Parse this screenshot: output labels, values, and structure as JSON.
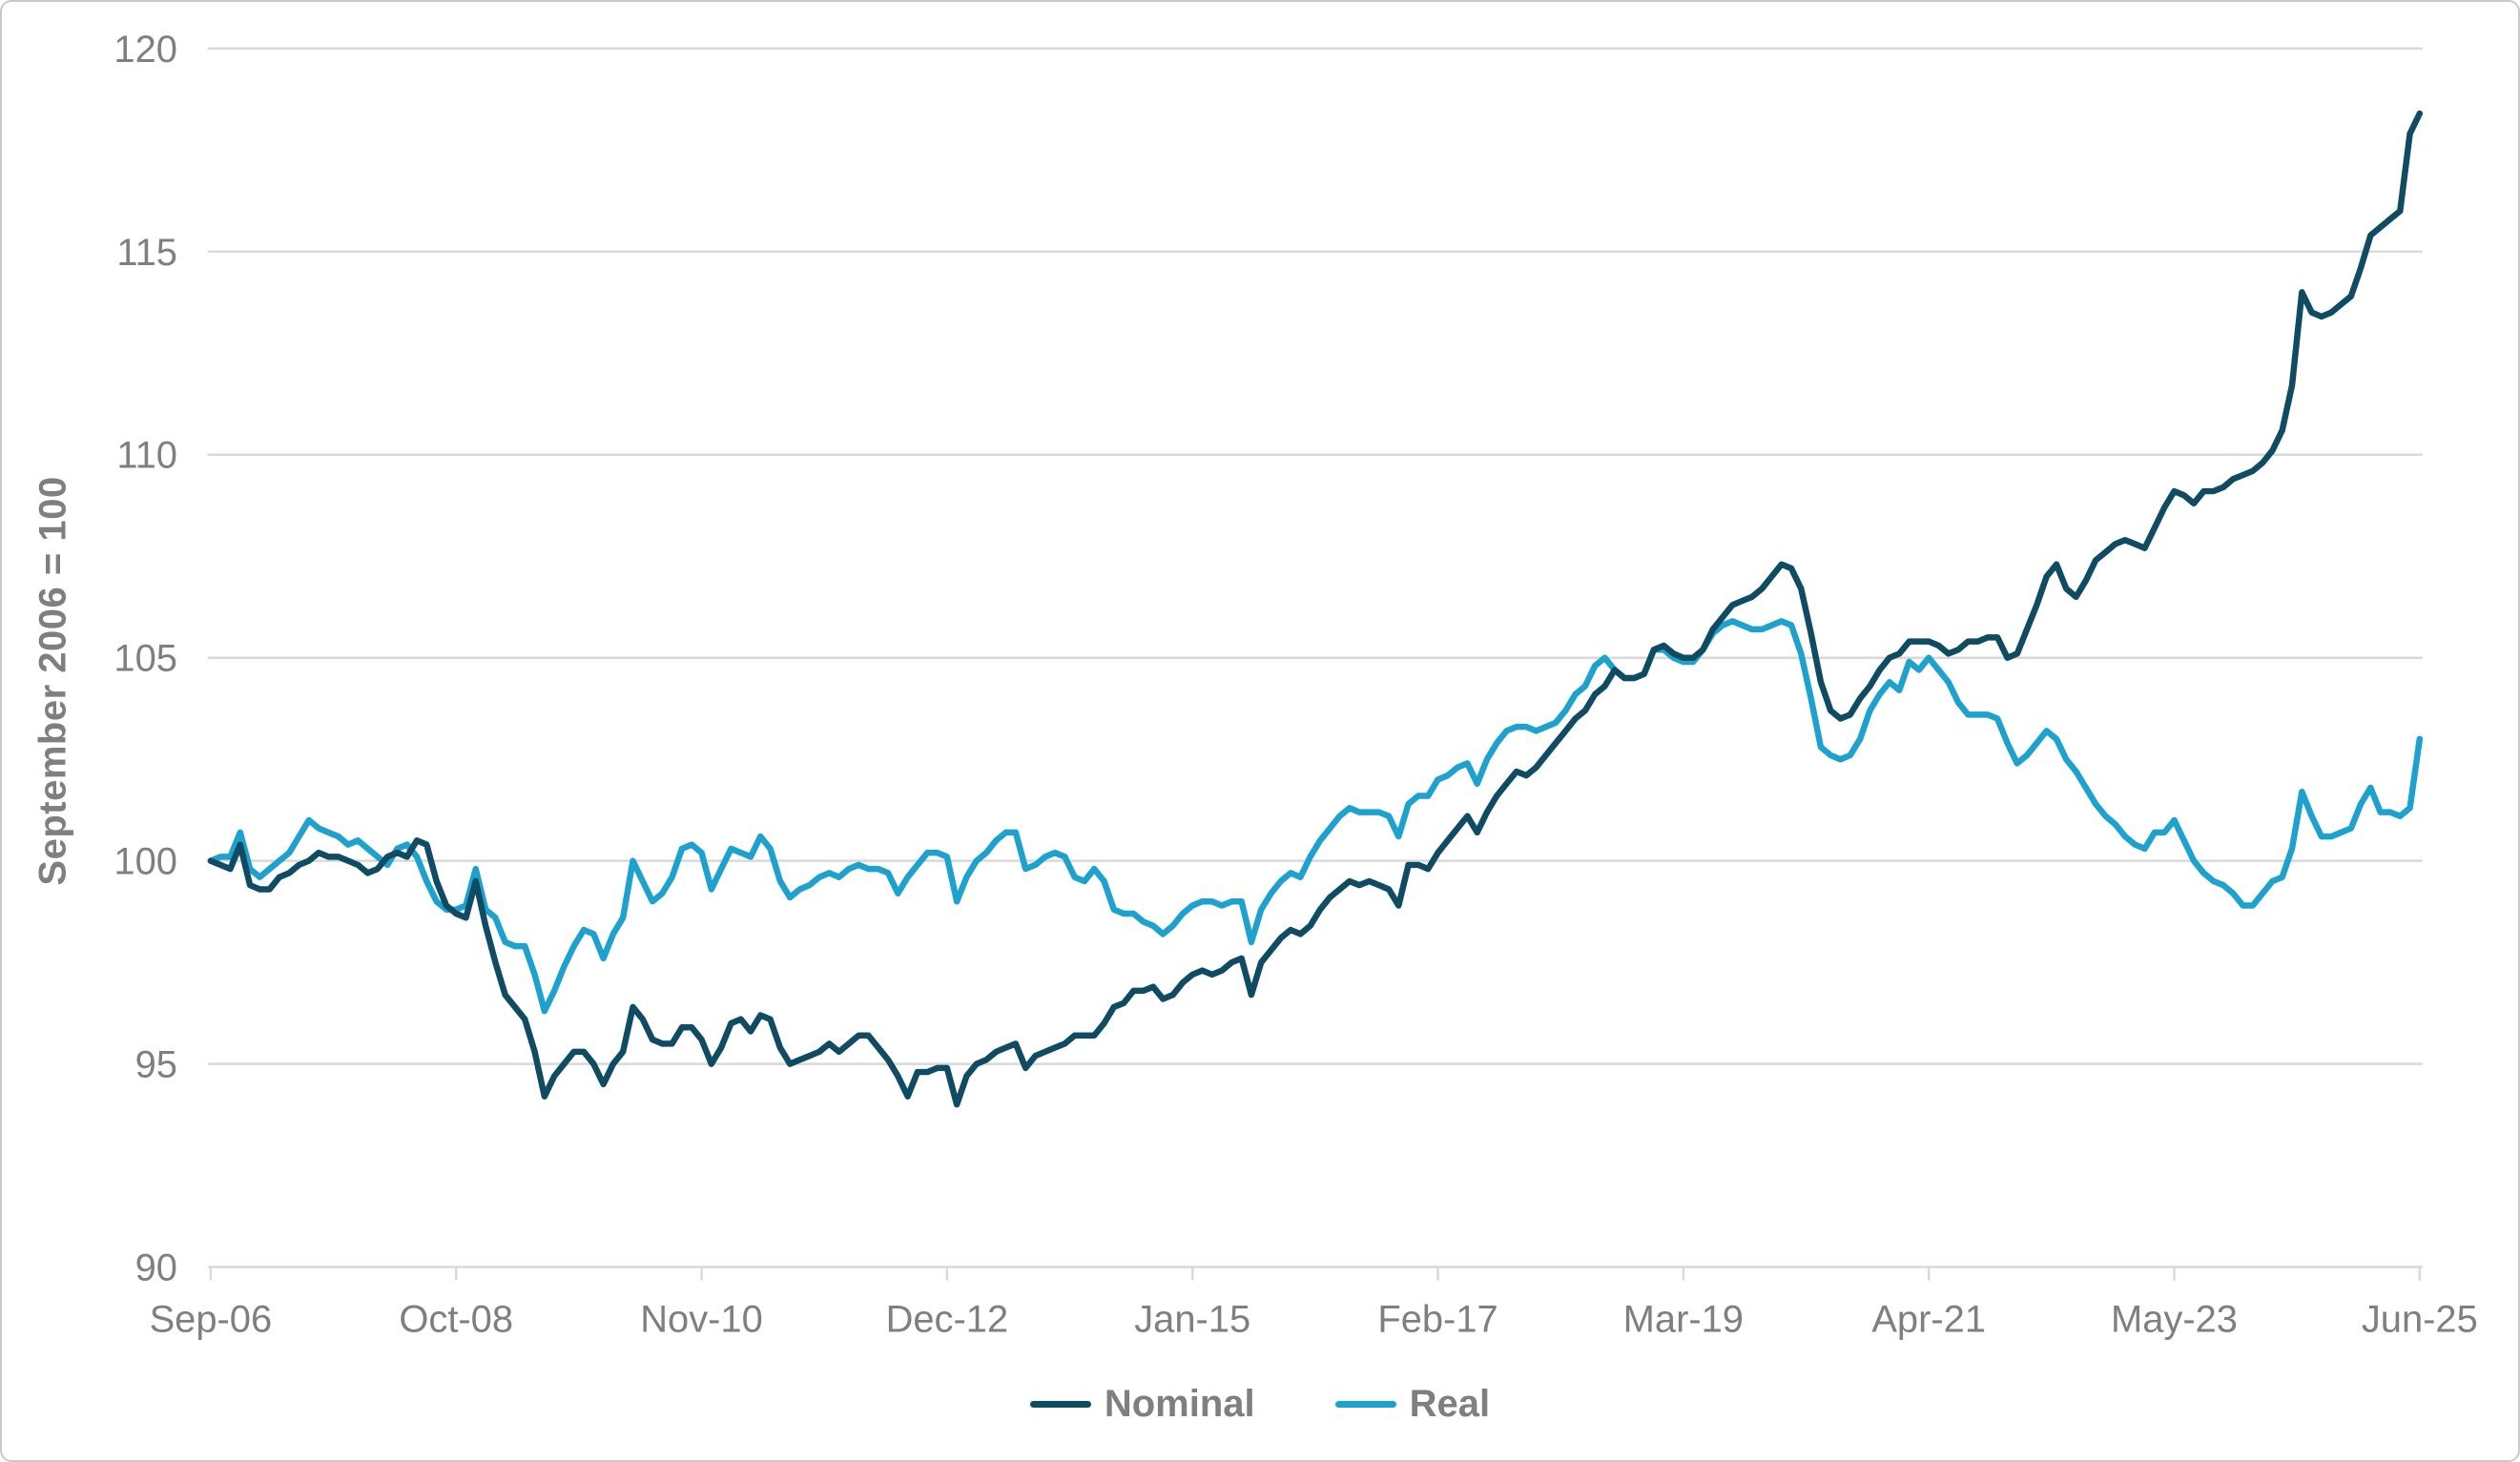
{
  "figure": {
    "y_axis_title": "September 2006 = 100"
  },
  "chart_data": {
    "type": "line",
    "title": "",
    "xlabel": "",
    "ylabel": "September 2006 = 100",
    "x_frequency": "monthly",
    "x_range_start": "Sep-2006",
    "x_range_end": "Jun-2025",
    "x_tick_labels": [
      "Sep-06",
      "Oct-08",
      "Nov-10",
      "Dec-12",
      "Jan-15",
      "Feb-17",
      "Mar-19",
      "Apr-21",
      "May-23",
      "Jun-25"
    ],
    "x_tick_month_indices": [
      0,
      25,
      50,
      75,
      100,
      125,
      150,
      175,
      200,
      225
    ],
    "ylim": [
      90,
      120
    ],
    "y_ticks": [
      90,
      95,
      100,
      105,
      110,
      115,
      120
    ],
    "grid": "horizontal",
    "legend_position": "bottom",
    "colors": {
      "nominal": "#0f4c64",
      "real": "#1da1ce",
      "gridline": "#d9d9d9",
      "axis_text": "#7f7f7f",
      "border": "#c9c9c9"
    },
    "series": [
      {
        "name": "Nominal",
        "color": "#0f4c64",
        "values": [
          100.0,
          99.9,
          99.8,
          100.4,
          99.4,
          99.3,
          99.3,
          99.6,
          99.7,
          99.9,
          100.0,
          100.2,
          100.1,
          100.1,
          100.0,
          99.9,
          99.7,
          99.8,
          100.1,
          100.2,
          100.1,
          100.5,
          100.4,
          99.5,
          98.9,
          98.7,
          98.6,
          99.5,
          98.4,
          97.5,
          96.7,
          96.4,
          96.1,
          95.3,
          94.2,
          94.7,
          95.0,
          95.3,
          95.3,
          95.0,
          94.5,
          95.0,
          95.3,
          96.4,
          96.1,
          95.6,
          95.5,
          95.5,
          95.9,
          95.9,
          95.6,
          95.0,
          95.4,
          96.0,
          96.1,
          95.8,
          96.2,
          96.1,
          95.4,
          95.0,
          95.1,
          95.2,
          95.3,
          95.5,
          95.3,
          95.5,
          95.7,
          95.7,
          95.4,
          95.1,
          94.7,
          94.2,
          94.8,
          94.8,
          94.9,
          94.9,
          94.0,
          94.7,
          95.0,
          95.1,
          95.3,
          95.4,
          95.5,
          94.9,
          95.2,
          95.3,
          95.4,
          95.5,
          95.7,
          95.7,
          95.7,
          96.0,
          96.4,
          96.5,
          96.8,
          96.8,
          96.9,
          96.6,
          96.7,
          97.0,
          97.2,
          97.3,
          97.2,
          97.3,
          97.5,
          97.6,
          96.7,
          97.5,
          97.8,
          98.1,
          98.3,
          98.2,
          98.4,
          98.8,
          99.1,
          99.3,
          99.5,
          99.4,
          99.5,
          99.4,
          99.3,
          98.9,
          99.9,
          99.9,
          99.8,
          100.2,
          100.5,
          100.8,
          101.1,
          100.7,
          101.2,
          101.6,
          101.9,
          102.2,
          102.1,
          102.3,
          102.6,
          102.9,
          103.2,
          103.5,
          103.7,
          104.1,
          104.3,
          104.7,
          104.5,
          104.5,
          104.6,
          105.2,
          105.3,
          105.1,
          105.0,
          105.0,
          105.2,
          105.7,
          106.0,
          106.3,
          106.4,
          106.5,
          106.7,
          107.0,
          107.3,
          107.2,
          106.7,
          105.6,
          104.4,
          103.7,
          103.5,
          103.6,
          104.0,
          104.3,
          104.7,
          105.0,
          105.1,
          105.4,
          105.4,
          105.4,
          105.3,
          105.1,
          105.2,
          105.4,
          105.4,
          105.5,
          105.5,
          105.0,
          105.1,
          105.7,
          106.3,
          107.0,
          107.3,
          106.7,
          106.5,
          106.9,
          107.4,
          107.6,
          107.8,
          107.9,
          107.8,
          107.7,
          108.2,
          108.7,
          109.1,
          109.0,
          108.8,
          109.1,
          109.1,
          109.2,
          109.4,
          109.5,
          109.6,
          109.8,
          110.1,
          110.6,
          111.7,
          114.0,
          113.5,
          113.4,
          113.5,
          113.7,
          113.9,
          114.6,
          115.4,
          115.6,
          115.8,
          116.0,
          117.9,
          118.4
        ]
      },
      {
        "name": "Real",
        "color": "#1da1ce",
        "values": [
          100.0,
          100.1,
          100.1,
          100.7,
          99.8,
          99.6,
          99.8,
          100.0,
          100.2,
          100.6,
          101.0,
          100.8,
          100.7,
          100.6,
          100.4,
          100.5,
          100.3,
          100.1,
          99.9,
          100.3,
          100.4,
          100.1,
          99.5,
          99.0,
          98.8,
          98.8,
          98.9,
          99.8,
          98.8,
          98.6,
          98.0,
          97.9,
          97.9,
          97.2,
          96.3,
          96.8,
          97.4,
          97.9,
          98.3,
          98.2,
          97.6,
          98.2,
          98.6,
          100.0,
          99.5,
          99.0,
          99.2,
          99.6,
          100.3,
          100.4,
          100.2,
          99.3,
          99.8,
          100.3,
          100.2,
          100.1,
          100.6,
          100.3,
          99.5,
          99.1,
          99.3,
          99.4,
          99.6,
          99.7,
          99.6,
          99.8,
          99.9,
          99.8,
          99.8,
          99.7,
          99.2,
          99.6,
          99.9,
          100.2,
          100.2,
          100.1,
          99.0,
          99.6,
          100.0,
          100.2,
          100.5,
          100.7,
          100.7,
          99.8,
          99.9,
          100.1,
          100.2,
          100.1,
          99.6,
          99.5,
          99.8,
          99.5,
          98.8,
          98.7,
          98.7,
          98.5,
          98.4,
          98.2,
          98.4,
          98.7,
          98.9,
          99.0,
          99.0,
          98.9,
          99.0,
          99.0,
          98.0,
          98.8,
          99.2,
          99.5,
          99.7,
          99.6,
          100.1,
          100.5,
          100.8,
          101.1,
          101.3,
          101.2,
          101.2,
          101.2,
          101.1,
          100.6,
          101.4,
          101.6,
          101.6,
          102.0,
          102.1,
          102.3,
          102.4,
          101.9,
          102.5,
          102.9,
          103.2,
          103.3,
          103.3,
          103.2,
          103.3,
          103.4,
          103.7,
          104.1,
          104.3,
          104.8,
          105.0,
          104.7,
          104.5,
          104.5,
          104.6,
          105.2,
          105.2,
          105.0,
          104.9,
          104.9,
          105.2,
          105.6,
          105.8,
          105.9,
          105.8,
          105.7,
          105.7,
          105.8,
          105.9,
          105.8,
          105.1,
          104.0,
          102.8,
          102.6,
          102.5,
          102.6,
          103.0,
          103.7,
          104.1,
          104.4,
          104.2,
          104.9,
          104.7,
          105.0,
          104.7,
          104.4,
          103.9,
          103.6,
          103.6,
          103.6,
          103.5,
          102.9,
          102.4,
          102.6,
          102.9,
          103.2,
          103.0,
          102.5,
          102.2,
          101.8,
          101.4,
          101.1,
          100.9,
          100.6,
          100.4,
          100.3,
          100.7,
          100.7,
          101.0,
          100.5,
          100.0,
          99.7,
          99.5,
          99.4,
          99.2,
          98.9,
          98.9,
          99.2,
          99.5,
          99.6,
          100.3,
          101.7,
          101.1,
          100.6,
          100.6,
          100.7,
          100.8,
          101.4,
          101.8,
          101.2,
          101.2,
          101.1,
          101.3,
          103.0
        ]
      }
    ]
  }
}
